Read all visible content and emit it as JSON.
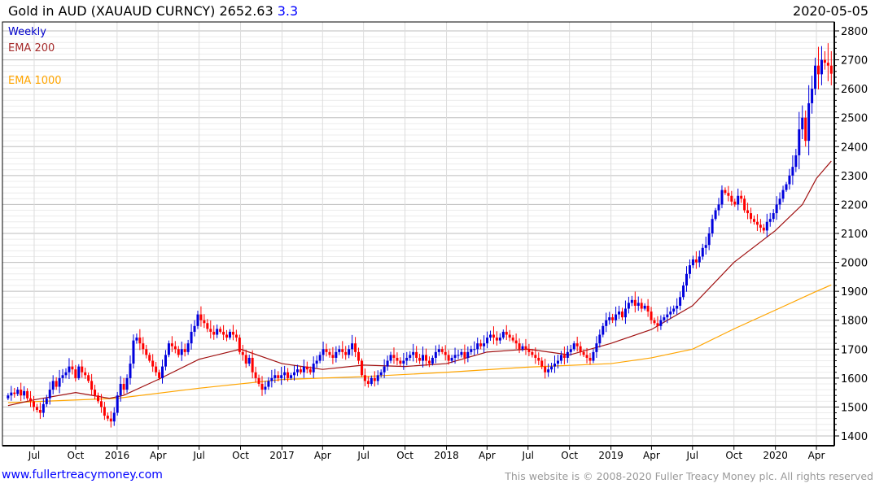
{
  "header": {
    "title": "Gold in AUD (XAUAUD CURNCY) 2652.63",
    "change": "3.3",
    "date": "2020-05-05"
  },
  "footer": {
    "link": "www.fullertreacymoney.com",
    "copyright": "This website is © 2008-2020 Fuller Treacy Money plc. All rights reserved"
  },
  "chart_data": {
    "type": "candlestick",
    "title": "Gold in AUD (XAUAUD CURNCY)",
    "legend": [
      {
        "label": "Weekly",
        "color": "#0000cc"
      },
      {
        "label": "EMA 200",
        "color": "#a52a2a"
      },
      {
        "label": "EMA 1000",
        "color": "#ffa500"
      }
    ],
    "colors": {
      "up": "#0000dd",
      "down": "#ff0000",
      "ema200": "#a01010",
      "ema1000": "#ffa500"
    },
    "ylim": [
      1400,
      2800
    ],
    "yticks": [
      1400,
      1500,
      1600,
      1700,
      1800,
      1900,
      2000,
      2100,
      2200,
      2300,
      2400,
      2500,
      2600,
      2700,
      2800
    ],
    "xrange": [
      "2015-04-27",
      "2020-05-11"
    ],
    "xticks": [
      {
        "d": "2015-07-01",
        "label": "Jul"
      },
      {
        "d": "2015-10-01",
        "label": "Oct"
      },
      {
        "d": "2016-01-01",
        "label": "2016"
      },
      {
        "d": "2016-04-01",
        "label": "Apr"
      },
      {
        "d": "2016-07-01",
        "label": "Jul"
      },
      {
        "d": "2016-10-01",
        "label": "Oct"
      },
      {
        "d": "2017-01-01",
        "label": "2017"
      },
      {
        "d": "2017-04-01",
        "label": "Apr"
      },
      {
        "d": "2017-07-01",
        "label": "Jul"
      },
      {
        "d": "2017-10-01",
        "label": "Oct"
      },
      {
        "d": "2018-01-01",
        "label": "2018"
      },
      {
        "d": "2018-04-01",
        "label": "Apr"
      },
      {
        "d": "2018-07-01",
        "label": "Jul"
      },
      {
        "d": "2018-10-01",
        "label": "Oct"
      },
      {
        "d": "2019-01-01",
        "label": "2019"
      },
      {
        "d": "2019-04-01",
        "label": "Apr"
      },
      {
        "d": "2019-07-01",
        "label": "Jul"
      },
      {
        "d": "2019-10-01",
        "label": "Oct"
      },
      {
        "d": "2020-01-01",
        "label": "2020"
      },
      {
        "d": "2020-04-01",
        "label": "Apr"
      }
    ],
    "candles_start": "2015-05-04",
    "candles_end": "2020-05-04",
    "weekly_close": [
      1540,
      1550,
      1545,
      1560,
      1540,
      1555,
      1530,
      1520,
      1500,
      1490,
      1480,
      1510,
      1530,
      1560,
      1590,
      1570,
      1600,
      1610,
      1620,
      1640,
      1630,
      1600,
      1640,
      1620,
      1610,
      1590,
      1560,
      1540,
      1520,
      1500,
      1470,
      1460,
      1450,
      1480,
      1540,
      1580,
      1560,
      1600,
      1650,
      1730,
      1740,
      1720,
      1700,
      1680,
      1660,
      1640,
      1620,
      1600,
      1640,
      1680,
      1720,
      1710,
      1700,
      1680,
      1700,
      1690,
      1720,
      1760,
      1780,
      1820,
      1800,
      1790,
      1770,
      1760,
      1750,
      1770,
      1760,
      1750,
      1740,
      1760,
      1750,
      1740,
      1690,
      1680,
      1650,
      1670,
      1620,
      1600,
      1580,
      1560,
      1570,
      1590,
      1600,
      1610,
      1600,
      1610,
      1620,
      1600,
      1610,
      1620,
      1630,
      1620,
      1640,
      1630,
      1620,
      1650,
      1660,
      1680,
      1700,
      1690,
      1680,
      1670,
      1690,
      1700,
      1690,
      1680,
      1700,
      1720,
      1690,
      1660,
      1610,
      1590,
      1580,
      1600,
      1590,
      1610,
      1620,
      1640,
      1660,
      1680,
      1670,
      1660,
      1650,
      1660,
      1670,
      1680,
      1690,
      1670,
      1660,
      1680,
      1660,
      1650,
      1670,
      1690,
      1700,
      1690,
      1680,
      1660,
      1670,
      1680,
      1680,
      1690,
      1670,
      1690,
      1700,
      1700,
      1720,
      1710,
      1720,
      1740,
      1750,
      1740,
      1730,
      1740,
      1760,
      1750,
      1740,
      1730,
      1720,
      1700,
      1710,
      1700,
      1690,
      1680,
      1670,
      1660,
      1640,
      1620,
      1630,
      1640,
      1650,
      1660,
      1680,
      1670,
      1690,
      1700,
      1720,
      1710,
      1690,
      1680,
      1670,
      1660,
      1690,
      1720,
      1750,
      1780,
      1800,
      1810,
      1800,
      1820,
      1830,
      1810,
      1840,
      1860,
      1870,
      1850,
      1860,
      1840,
      1850,
      1830,
      1800,
      1790,
      1780,
      1800,
      1810,
      1820,
      1830,
      1840,
      1850,
      1880,
      1920,
      1960,
      1990,
      2010,
      2000,
      2020,
      2050,
      2060,
      2100,
      2150,
      2180,
      2200,
      2250,
      2240,
      2230,
      2210,
      2200,
      2230,
      2220,
      2180,
      2170,
      2150,
      2140,
      2130,
      2120,
      2110,
      2140,
      2150,
      2170,
      2200,
      2220,
      2250,
      2270,
      2300,
      2330,
      2370,
      2460,
      2500,
      2420,
      2550,
      2600,
      2680,
      2650,
      2700,
      2690,
      2680,
      2652
    ],
    "ema200": [
      [
        "2015-05-04",
        1505
      ],
      [
        "2015-07-01",
        1525
      ],
      [
        "2015-10-01",
        1550
      ],
      [
        "2015-12-15",
        1530
      ],
      [
        "2016-01-15",
        1540
      ],
      [
        "2016-04-01",
        1595
      ],
      [
        "2016-07-01",
        1665
      ],
      [
        "2016-10-01",
        1700
      ],
      [
        "2017-01-01",
        1650
      ],
      [
        "2017-04-01",
        1630
      ],
      [
        "2017-07-01",
        1645
      ],
      [
        "2017-10-01",
        1640
      ],
      [
        "2018-01-01",
        1650
      ],
      [
        "2018-04-01",
        1690
      ],
      [
        "2018-07-01",
        1700
      ],
      [
        "2018-10-01",
        1680
      ],
      [
        "2019-01-01",
        1720
      ],
      [
        "2019-04-01",
        1768
      ],
      [
        "2019-07-01",
        1850
      ],
      [
        "2019-10-01",
        2000
      ],
      [
        "2020-01-01",
        2110
      ],
      [
        "2020-03-01",
        2200
      ],
      [
        "2020-04-01",
        2290
      ],
      [
        "2020-05-04",
        2350
      ]
    ],
    "ema1000": [
      [
        "2015-05-04",
        1515
      ],
      [
        "2016-01-01",
        1530
      ],
      [
        "2016-07-01",
        1565
      ],
      [
        "2017-01-01",
        1595
      ],
      [
        "2017-07-01",
        1605
      ],
      [
        "2018-01-01",
        1620
      ],
      [
        "2018-07-01",
        1638
      ],
      [
        "2019-01-01",
        1650
      ],
      [
        "2019-04-01",
        1670
      ],
      [
        "2019-07-01",
        1700
      ],
      [
        "2019-10-01",
        1770
      ],
      [
        "2020-01-01",
        1835
      ],
      [
        "2020-04-01",
        1900
      ],
      [
        "2020-05-04",
        1922
      ]
    ]
  }
}
